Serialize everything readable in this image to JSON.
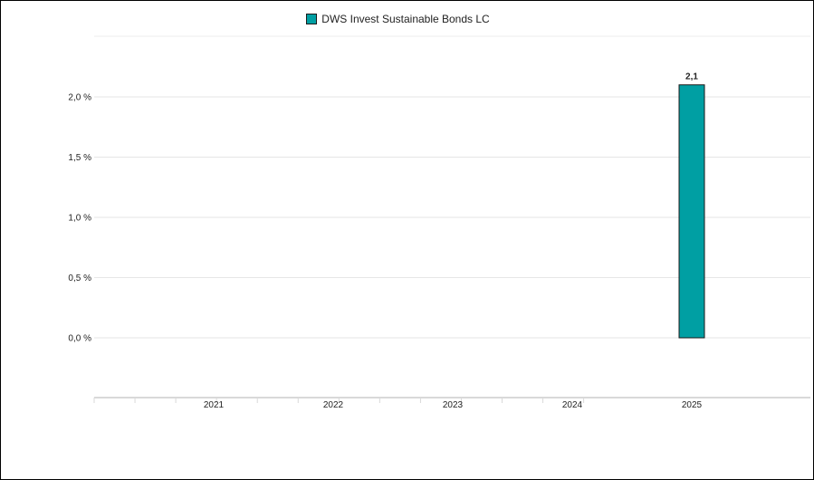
{
  "chart_data": {
    "type": "bar",
    "categories": [
      "2021",
      "2022",
      "2023",
      "2024",
      "2025"
    ],
    "series": [
      {
        "name": "DWS Invest Sustainable Bonds LC",
        "values": [
          null,
          null,
          null,
          null,
          2.1
        ],
        "color": "#009fa3"
      }
    ],
    "data_labels": [
      "",
      "",
      "",
      "",
      "2,1"
    ],
    "yticks": [
      0.0,
      0.5,
      1.0,
      1.5,
      2.0
    ],
    "ytick_labels": [
      "0,0 %",
      "0,5 %",
      "1,0 %",
      "1,5 %",
      "2,0 %"
    ],
    "ylim": [
      -0.5,
      2.5
    ],
    "grid": true,
    "legend_position": "top-center"
  }
}
